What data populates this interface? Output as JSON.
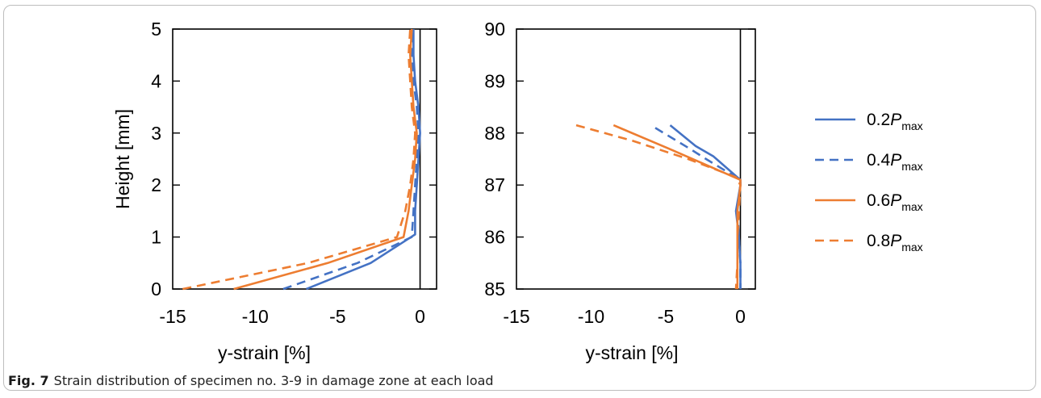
{
  "caption": {
    "label": "Fig. 7",
    "text": "Strain distribution of specimen no. 3-9 in damage zone at each load"
  },
  "colors": {
    "blue": "#4472c4",
    "orange": "#ed7d31"
  },
  "chart_data": [
    {
      "type": "line",
      "ylabel": "Height [mm]",
      "xlabel": "y-strain [%]",
      "xlim": [
        -15,
        1
      ],
      "ylim": [
        0,
        5
      ],
      "xticks": [
        -15,
        -10,
        -5,
        0
      ],
      "yticks": [
        0,
        1,
        2,
        3,
        4,
        5
      ],
      "grid": false,
      "zero_line": true,
      "series": [
        {
          "color": "#4472c4",
          "dash": "solid",
          "points": [
            [
              -6.9,
              0
            ],
            [
              -3.0,
              0.5
            ],
            [
              -0.3,
              1.05
            ],
            [
              -0.3,
              1.5
            ],
            [
              -0.2,
              2
            ],
            [
              -0.1,
              2.5
            ],
            [
              0,
              3
            ],
            [
              -0.1,
              3.5
            ],
            [
              -0.3,
              4
            ],
            [
              -0.4,
              4.5
            ],
            [
              -0.4,
              5
            ]
          ]
        },
        {
          "color": "#4472c4",
          "dash": "dashed",
          "points": [
            [
              -8.3,
              0
            ],
            [
              -3.8,
              0.5
            ],
            [
              -0.5,
              1.0
            ],
            [
              -0.4,
              1.5
            ],
            [
              -0.3,
              2
            ],
            [
              -0.2,
              2.5
            ],
            [
              -0.1,
              3
            ],
            [
              -0.2,
              3.5
            ],
            [
              -0.4,
              4
            ],
            [
              -0.5,
              4.5
            ],
            [
              -0.5,
              5
            ]
          ]
        },
        {
          "color": "#ed7d31",
          "dash": "solid",
          "points": [
            [
              -11.3,
              0
            ],
            [
              -5.6,
              0.5
            ],
            [
              -1.0,
              1.0
            ],
            [
              -0.7,
              1.5
            ],
            [
              -0.5,
              2
            ],
            [
              -0.3,
              2.5
            ],
            [
              -0.2,
              3
            ],
            [
              -0.4,
              3.5
            ],
            [
              -0.5,
              4
            ],
            [
              -0.6,
              4.5
            ],
            [
              -0.5,
              5
            ]
          ]
        },
        {
          "color": "#ed7d31",
          "dash": "dashed",
          "points": [
            [
              -14.4,
              0
            ],
            [
              -6.8,
              0.5
            ],
            [
              -1.4,
              1.0
            ],
            [
              -0.9,
              1.5
            ],
            [
              -0.6,
              2
            ],
            [
              -0.4,
              2.5
            ],
            [
              -0.3,
              3
            ],
            [
              -0.5,
              3.5
            ],
            [
              -0.6,
              4
            ],
            [
              -0.7,
              4.5
            ],
            [
              -0.6,
              5
            ]
          ]
        }
      ]
    },
    {
      "type": "line",
      "xlabel": "y-strain [%]",
      "xlim": [
        -15,
        1
      ],
      "ylim": [
        85,
        90
      ],
      "xticks": [
        -15,
        -10,
        -5,
        0
      ],
      "yticks": [
        85,
        86,
        87,
        88,
        89,
        90
      ],
      "grid": false,
      "zero_line": true,
      "series": [
        {
          "name": "0.2",
          "color": "#4472c4",
          "dash": "solid",
          "points": [
            [
              -4.7,
              88.15
            ],
            [
              -3.0,
              87.75
            ],
            [
              -1.8,
              87.55
            ],
            [
              0,
              87.1
            ],
            [
              0,
              87
            ],
            [
              -0.3,
              86.5
            ],
            [
              -0.1,
              86
            ],
            [
              0,
              85.5
            ],
            [
              0,
              85
            ]
          ]
        },
        {
          "name": "0.4",
          "color": "#4472c4",
          "dash": "dashed",
          "points": [
            [
              -5.7,
              88.1
            ],
            [
              -3.4,
              87.7
            ],
            [
              -2.3,
              87.5
            ],
            [
              0,
              87.1
            ],
            [
              0,
              87
            ],
            [
              -0.2,
              86.5
            ],
            [
              -0.1,
              86
            ],
            [
              0,
              85.5
            ],
            [
              0,
              85
            ]
          ]
        },
        {
          "name": "0.6",
          "color": "#ed7d31",
          "dash": "solid",
          "points": [
            [
              -8.5,
              88.15
            ],
            [
              -4.8,
              87.7
            ],
            [
              -2.8,
              87.45
            ],
            [
              0,
              87.1
            ],
            [
              0,
              87
            ],
            [
              -0.2,
              86.5
            ],
            [
              -0.2,
              86
            ],
            [
              -0.2,
              85.5
            ],
            [
              -0.2,
              85
            ]
          ]
        },
        {
          "name": "0.8",
          "color": "#ed7d31",
          "dash": "dashed",
          "points": [
            [
              -11.0,
              88.15
            ],
            [
              -7.2,
              87.85
            ],
            [
              -3.5,
              87.5
            ],
            [
              -0.3,
              87.15
            ],
            [
              0,
              87
            ],
            [
              -0.1,
              86.5
            ],
            [
              -0.2,
              86
            ],
            [
              -0.2,
              85.5
            ],
            [
              -0.3,
              85
            ]
          ]
        }
      ],
      "legend": {
        "placement": "right",
        "entries": [
          {
            "prefix": "0.2",
            "var": "P",
            "sub": "max",
            "color": "#4472c4",
            "dash": "solid"
          },
          {
            "prefix": "0.4",
            "var": "P",
            "sub": "max",
            "color": "#4472c4",
            "dash": "dashed"
          },
          {
            "prefix": "0.6",
            "var": "P",
            "sub": "max",
            "color": "#ed7d31",
            "dash": "solid"
          },
          {
            "prefix": "0.8",
            "var": "P",
            "sub": "max",
            "color": "#ed7d31",
            "dash": "dashed"
          }
        ]
      }
    }
  ]
}
